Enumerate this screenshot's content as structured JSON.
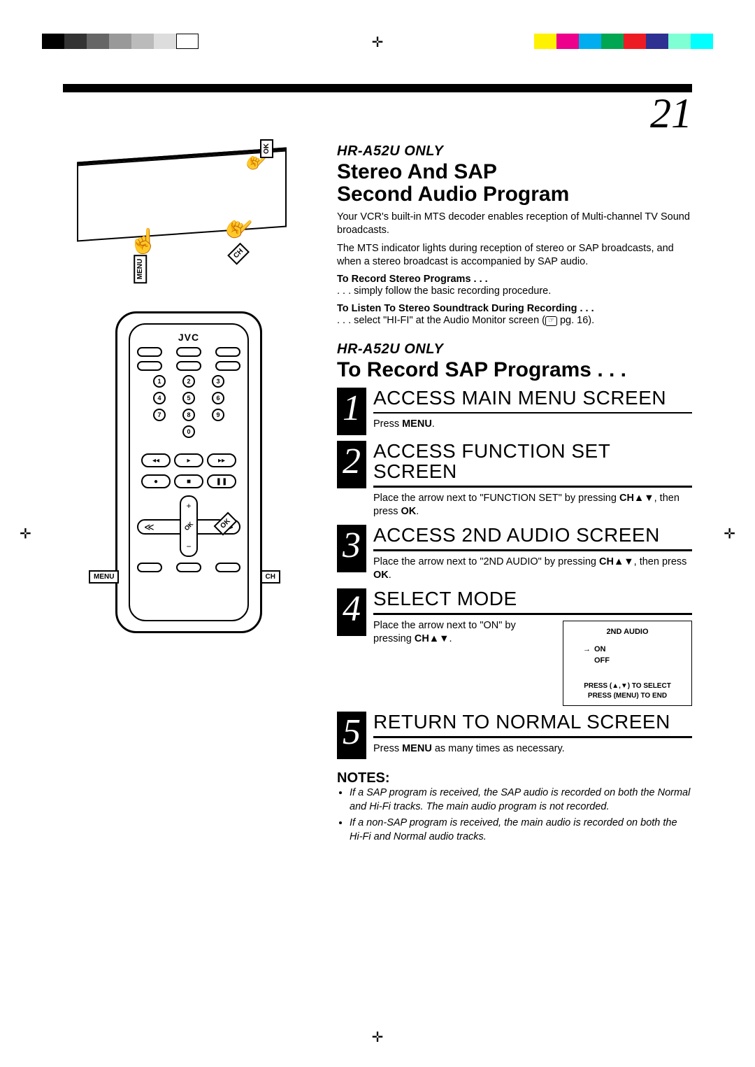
{
  "page_number": "21",
  "print_marks": {
    "left_swatches": [
      "#000000",
      "#333333",
      "#666666",
      "#999999",
      "#bbbbbb",
      "#dddddd",
      "#ffffff"
    ],
    "right_swatches": [
      "#fff200",
      "#ec008c",
      "#00aeef",
      "#00a651",
      "#ed1c24",
      "#2e3192",
      "#7fffd4",
      "#00ffff"
    ]
  },
  "left_column": {
    "vcr": {
      "labels": {
        "menu": "MENU",
        "ch": "CH",
        "ok": "OK"
      }
    },
    "remote": {
      "brand": "JVC",
      "numbers": [
        "1",
        "2",
        "3",
        "4",
        "5",
        "6",
        "7",
        "8",
        "9",
        "0"
      ],
      "callouts": {
        "menu": "MENU",
        "ch": "CH",
        "ok": "OK"
      },
      "dpad": {
        "plus": "+",
        "minus": "−",
        "left": "≪",
        "right": "≫",
        "ok": "OK"
      }
    }
  },
  "right_column": {
    "model_tag": "HR-A52U ONLY",
    "section1": {
      "title_line1": "Stereo And SAP",
      "title_line2": "Second Audio Program",
      "para1": "Your VCR's built-in MTS decoder enables reception of Multi-channel TV Sound broadcasts.",
      "para2": "The MTS indicator lights during reception of stereo or SAP broadcasts, and when a stereo broadcast is accompanied by SAP audio.",
      "sub1_head": "To Record Stereo Programs . . .",
      "sub1_body": ". . . simply follow the basic recording procedure.",
      "sub2_head": "To Listen To Stereo Soundtrack During Recording . . .",
      "sub2_body_a": ". . . select \"HI-FI\" at the Audio Monitor screen (",
      "sub2_ref": "☞",
      "sub2_body_b": " pg. 16)."
    },
    "section2_title": "To Record SAP Programs . . .",
    "steps": [
      {
        "num": "1",
        "title": "ACCESS MAIN MENU SCREEN",
        "body_a": "Press ",
        "body_bold": "MENU",
        "body_b": "."
      },
      {
        "num": "2",
        "title": "ACCESS FUNCTION SET SCREEN",
        "body_a": "Place the arrow next to \"FUNCTION SET\" by pressing ",
        "body_bold": "CH▲▼",
        "body_b": ", then press ",
        "body_bold2": "OK",
        "body_c": "."
      },
      {
        "num": "3",
        "title": "ACCESS 2ND AUDIO SCREEN",
        "body_a": "Place the arrow next to \"2ND AUDIO\" by pressing ",
        "body_bold": "CH▲▼",
        "body_b": ", then press ",
        "body_bold2": "OK",
        "body_c": "."
      },
      {
        "num": "4",
        "title": "SELECT MODE",
        "body_a": "Place the arrow next to \"ON\" by pressing ",
        "body_bold": "CH▲▼",
        "body_b": ".",
        "osd": {
          "title": "2ND AUDIO",
          "opt_on": "ON",
          "opt_off": "OFF",
          "foot1": "PRESS (▲,▼) TO SELECT",
          "foot2": "PRESS (MENU) TO END"
        }
      },
      {
        "num": "5",
        "title": "RETURN TO NORMAL SCREEN",
        "body_a": "Press ",
        "body_bold": "MENU",
        "body_b": " as many times as necessary."
      }
    ],
    "notes_heading": "NOTES:",
    "notes": [
      "If a SAP program is received, the SAP audio is recorded on both the Normal and Hi-Fi tracks. The main audio program is not recorded.",
      "If a non-SAP program is received, the main audio is recorded on both the Hi-Fi and Normal audio tracks."
    ]
  }
}
